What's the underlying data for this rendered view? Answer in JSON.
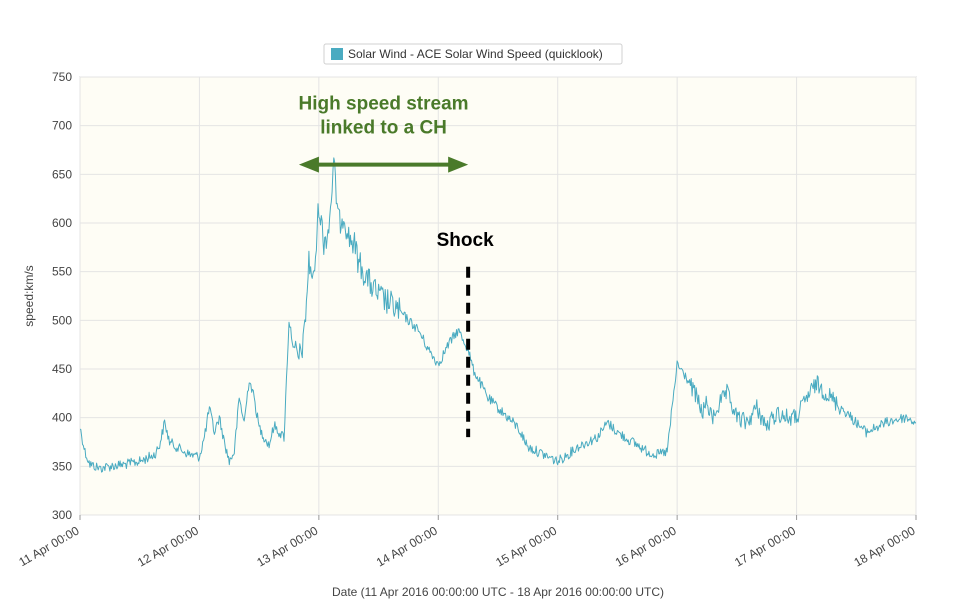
{
  "chart_data": {
    "type": "line",
    "title": "",
    "legend": {
      "position": "top-center",
      "label": "Solar Wind - ACE Solar Wind Speed (quicklook)"
    },
    "xlabel": "Date (11 Apr 2016 00:00:00 UTC - 18 Apr 2016 00:00:00 UTC)",
    "ylabel": "speed:km/s",
    "xlim": [
      "2016-04-11T00:00",
      "2016-04-18T00:00"
    ],
    "ylim": [
      300,
      750
    ],
    "y_ticks": [
      "300",
      "350",
      "400",
      "450",
      "500",
      "550",
      "600",
      "650",
      "700",
      "750"
    ],
    "x_ticks": [
      "11 Apr 00:00",
      "12 Apr 00:00",
      "13 Apr 00:00",
      "14 Apr 00:00",
      "15 Apr 00:00",
      "16 Apr 00:00",
      "17 Apr 00:00",
      "18 Apr 00:00"
    ],
    "grid": true,
    "colors": {
      "series": "#4aabc1",
      "plot_background": "#fefdf5",
      "grid": "#e4e4e4",
      "annotation_green": "#4a7a2a",
      "annotation_black": "#000000"
    },
    "series": [
      {
        "name": "Solar Wind - ACE Solar Wind Speed (quicklook)",
        "x": [
          "2016-04-11T00:00",
          "2016-04-11T01:00",
          "2016-04-11T02:00",
          "2016-04-11T04:00",
          "2016-04-11T06:00",
          "2016-04-11T09:00",
          "2016-04-11T12:00",
          "2016-04-11T15:00",
          "2016-04-11T16:00",
          "2016-04-11T17:00",
          "2016-04-11T18:00",
          "2016-04-11T20:00",
          "2016-04-11T22:00",
          "2016-04-12T00:00",
          "2016-04-12T01:00",
          "2016-04-12T02:00",
          "2016-04-12T03:00",
          "2016-04-12T04:00",
          "2016-04-12T05:00",
          "2016-04-12T06:00",
          "2016-04-12T07:00",
          "2016-04-12T08:00",
          "2016-04-12T09:00",
          "2016-04-12T10:00",
          "2016-04-12T11:00",
          "2016-04-12T12:00",
          "2016-04-12T13:00",
          "2016-04-12T14:00",
          "2016-04-12T15:00",
          "2016-04-12T16:00",
          "2016-04-12T17:00",
          "2016-04-12T18:00",
          "2016-04-12T19:00",
          "2016-04-12T20:00",
          "2016-04-12T21:00",
          "2016-04-12T22:00",
          "2016-04-12T23:00",
          "2016-04-13T00:00",
          "2016-04-13T01:00",
          "2016-04-13T02:00",
          "2016-04-13T03:00",
          "2016-04-13T04:00",
          "2016-04-13T05:00",
          "2016-04-13T06:00",
          "2016-04-13T07:00",
          "2016-04-13T08:00",
          "2016-04-13T09:00",
          "2016-04-13T10:00",
          "2016-04-13T12:00",
          "2016-04-13T14:00",
          "2016-04-13T16:00",
          "2016-04-13T18:00",
          "2016-04-13T20:00",
          "2016-04-13T22:00",
          "2016-04-14T00:00",
          "2016-04-14T02:00",
          "2016-04-14T04:00",
          "2016-04-14T06:00",
          "2016-04-14T07:00",
          "2016-04-14T08:00",
          "2016-04-14T09:00",
          "2016-04-14T10:00",
          "2016-04-14T12:00",
          "2016-04-14T14:00",
          "2016-04-14T16:00",
          "2016-04-14T18:00",
          "2016-04-14T20:00",
          "2016-04-14T22:00",
          "2016-04-15T00:00",
          "2016-04-15T02:00",
          "2016-04-15T04:00",
          "2016-04-15T06:00",
          "2016-04-15T08:00",
          "2016-04-15T10:00",
          "2016-04-15T12:00",
          "2016-04-15T14:00",
          "2016-04-15T16:00",
          "2016-04-15T18:00",
          "2016-04-15T20:00",
          "2016-04-15T22:00",
          "2016-04-16T00:00",
          "2016-04-16T02:00",
          "2016-04-16T04:00",
          "2016-04-16T05:00",
          "2016-04-16T06:00",
          "2016-04-16T07:00",
          "2016-04-16T08:00",
          "2016-04-16T10:00",
          "2016-04-16T12:00",
          "2016-04-16T14:00",
          "2016-04-16T16:00",
          "2016-04-16T18:00",
          "2016-04-16T20:00",
          "2016-04-16T22:00",
          "2016-04-17T00:00",
          "2016-04-17T02:00",
          "2016-04-17T04:00",
          "2016-04-17T06:00",
          "2016-04-17T08:00",
          "2016-04-17T10:00",
          "2016-04-17T12:00",
          "2016-04-17T14:00",
          "2016-04-17T16:00",
          "2016-04-17T18:00",
          "2016-04-17T20:00",
          "2016-04-17T22:00",
          "2016-04-18T00:00"
        ],
        "y": [
          390,
          365,
          352,
          348,
          350,
          352,
          355,
          362,
          372,
          395,
          375,
          368,
          362,
          360,
          380,
          410,
          385,
          400,
          375,
          355,
          365,
          420,
          395,
          440,
          420,
          390,
          380,
          372,
          392,
          385,
          380,
          500,
          470,
          460,
          480,
          560,
          540,
          620,
          580,
          595,
          660,
          600,
          610,
          585,
          580,
          560,
          550,
          540,
          525,
          518,
          510,
          500,
          490,
          470,
          455,
          475,
          490,
          470,
          450,
          440,
          430,
          420,
          410,
          400,
          390,
          370,
          365,
          360,
          355,
          362,
          370,
          375,
          380,
          395,
          385,
          378,
          372,
          365,
          362,
          365,
          455,
          440,
          420,
          405,
          415,
          398,
          410,
          425,
          400,
          395,
          410,
          390,
          405,
          400,
          400,
          420,
          435,
          425,
          415,
          405,
          395,
          385,
          390,
          395,
          398,
          400,
          395
        ]
      }
    ],
    "annotations": [
      {
        "text_line1": "High speed stream",
        "text_line2": "linked to a CH",
        "color": "#4a7a2a",
        "type": "double-arrow",
        "x_start": "2016-04-12T20:00",
        "x_end": "2016-04-14T06:00",
        "y": 660
      },
      {
        "text": "Shock",
        "color": "#000000",
        "type": "dashed-vertical-line",
        "x": "2016-04-14T06:00",
        "y_range": [
          380,
          555
        ]
      }
    ]
  }
}
